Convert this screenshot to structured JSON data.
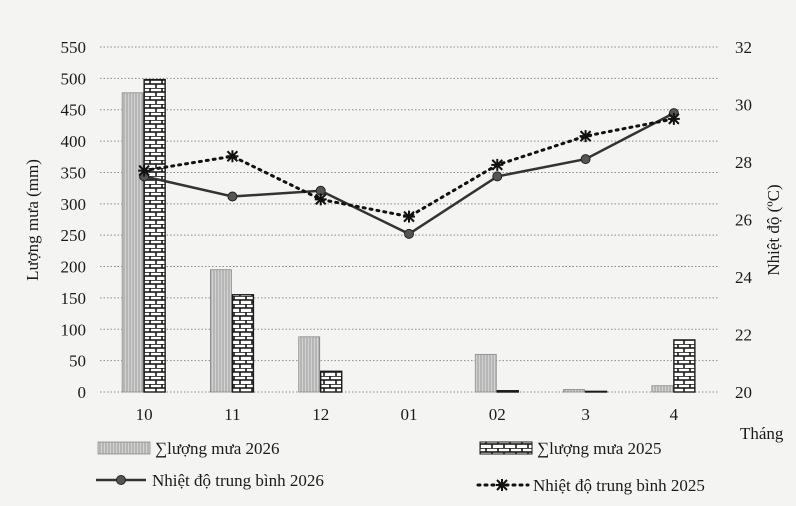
{
  "chart_data": {
    "type": "bar+line",
    "categories": [
      "10",
      "11",
      "12",
      "01",
      "02",
      "3",
      "4"
    ],
    "xlabel": "Tháng",
    "ylabel_left": "Lượng mưa (mm)",
    "ylabel_right": "Nhiệt độ (ºC)",
    "ylim_left": [
      0,
      550
    ],
    "yticks_left": [
      "0",
      "50",
      "100",
      "150",
      "200",
      "250",
      "300",
      "350",
      "400",
      "450",
      "500",
      "550"
    ],
    "ylim_right": [
      20,
      32
    ],
    "yticks_right": [
      "20",
      "22",
      "24",
      "26",
      "28",
      "30",
      "32"
    ],
    "grid": "horizontal dotted",
    "legend_position": "bottom",
    "series": [
      {
        "name": "∑lượng mưa 2026",
        "type": "bar",
        "axis": "left",
        "style": "light-gray-vertical-hatch",
        "values": [
          477,
          195,
          88,
          0,
          60,
          4,
          10
        ]
      },
      {
        "name": "∑lượng mưa 2025",
        "type": "bar",
        "axis": "left",
        "style": "brick-hatch",
        "values": [
          498,
          155,
          33,
          0,
          2,
          1,
          83
        ]
      },
      {
        "name": "Nhiệt độ trung bình 2026",
        "type": "line",
        "axis": "right",
        "style": "solid-circle",
        "values": [
          27.5,
          26.8,
          27.0,
          25.5,
          27.5,
          28.1,
          29.7
        ]
      },
      {
        "name": "Nhiệt độ trung bình 2025",
        "type": "line",
        "axis": "right",
        "style": "dotted-asterisk",
        "values": [
          27.7,
          28.2,
          26.7,
          26.1,
          27.9,
          28.9,
          29.5
        ]
      }
    ]
  }
}
